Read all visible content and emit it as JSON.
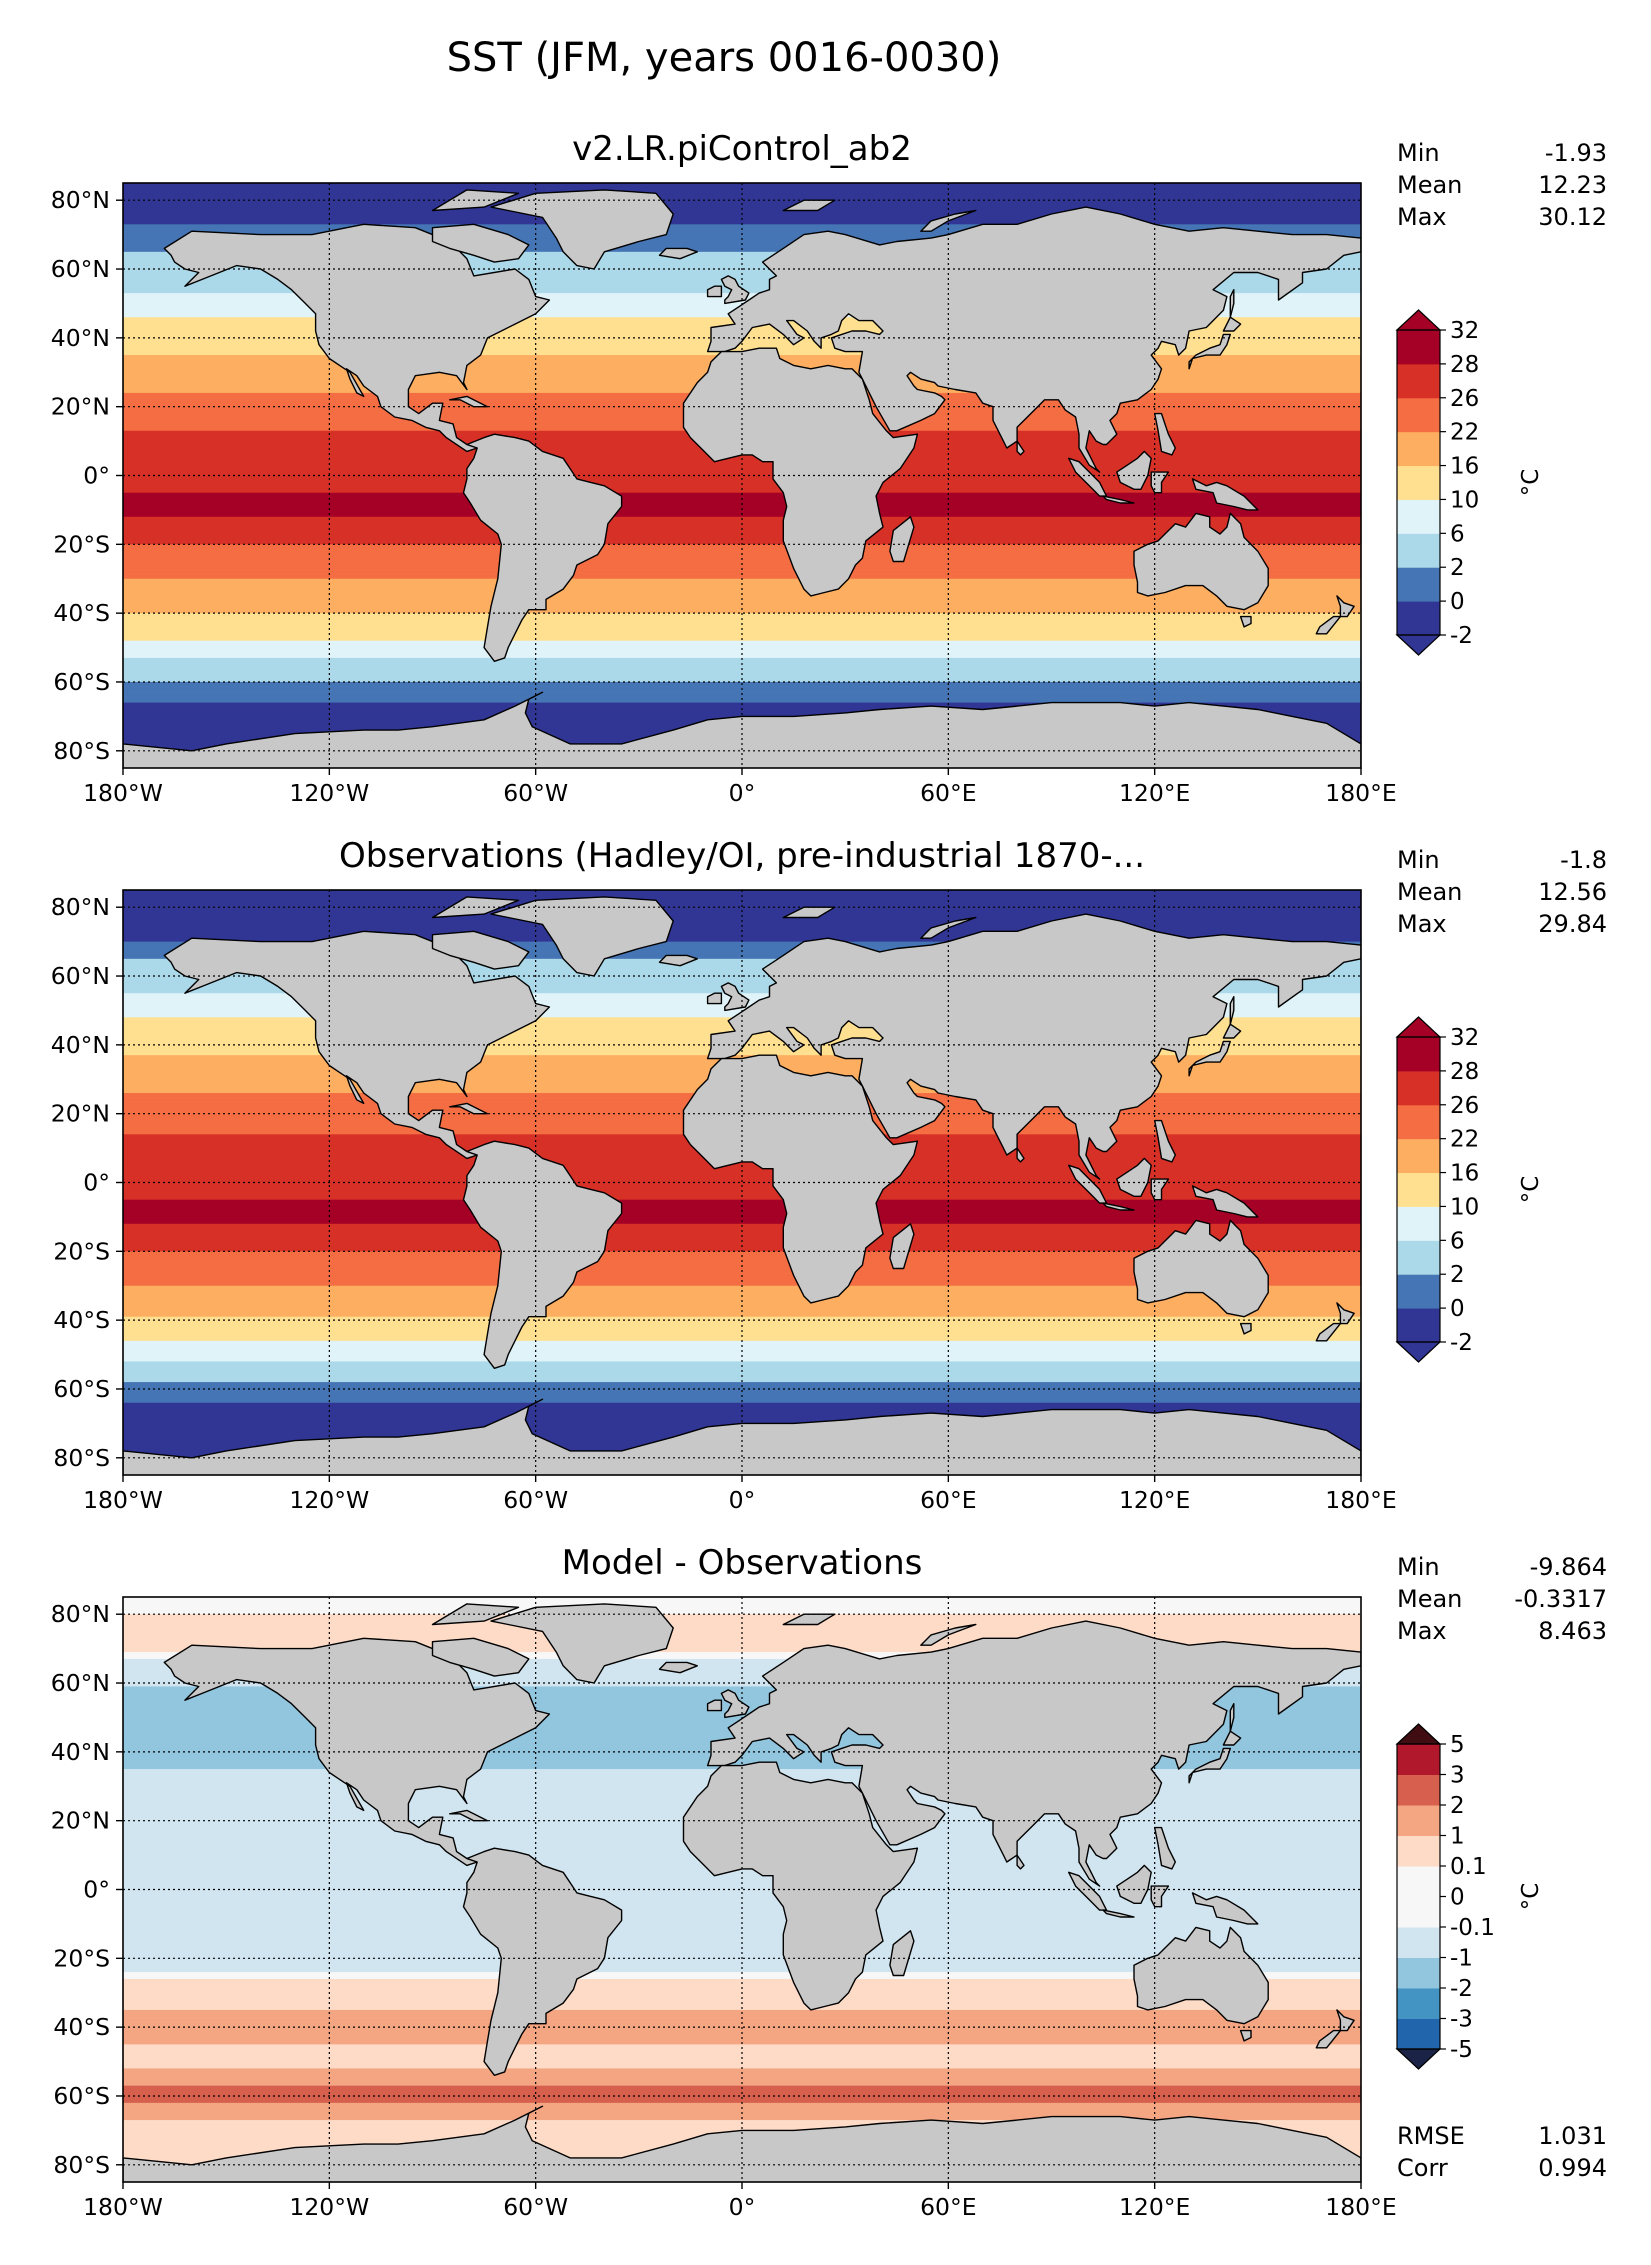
{
  "figure": {
    "title": "SST (JFM, years 0016-0030)"
  },
  "chart_data": [
    {
      "type": "heatmap",
      "title": "v2.LR.piControl_ab2",
      "units": "°C",
      "x_ticks": [
        "180°W",
        "120°W",
        "60°W",
        "0°",
        "60°E",
        "120°E",
        "180°E"
      ],
      "y_ticks": [
        "80°N",
        "60°N",
        "40°N",
        "20°N",
        "0°",
        "20°S",
        "40°S",
        "60°S",
        "80°S"
      ],
      "xlim": [
        -180,
        180
      ],
      "ylim": [
        -85,
        85
      ],
      "stats": [
        {
          "label": "Min",
          "value": "-1.93"
        },
        {
          "label": "Mean",
          "value": "12.23"
        },
        {
          "label": "Max",
          "value": "30.12"
        }
      ],
      "colorbar": {
        "levels": [
          "-2",
          "0",
          "2",
          "6",
          "10",
          "16",
          "22",
          "26",
          "28",
          "32"
        ],
        "colors": [
          "#313695",
          "#4575b4",
          "#abd9e9",
          "#e0f3f8",
          "#fee090",
          "#fdae61",
          "#f46d43",
          "#d73027",
          "#a50026"
        ],
        "extend": "both"
      },
      "zonal_profile": [
        {
          "lat": 85,
          "sst": -1.9
        },
        {
          "lat": 70,
          "sst": 0.5
        },
        {
          "lat": 55,
          "sst": 5
        },
        {
          "lat": 40,
          "sst": 13
        },
        {
          "lat": 30,
          "sst": 19
        },
        {
          "lat": 20,
          "sst": 24
        },
        {
          "lat": 10,
          "sst": 27
        },
        {
          "lat": 0,
          "sst": 27.5
        },
        {
          "lat": -10,
          "sst": 28.5
        },
        {
          "lat": -20,
          "sst": 26
        },
        {
          "lat": -30,
          "sst": 22
        },
        {
          "lat": -40,
          "sst": 16
        },
        {
          "lat": -50,
          "sst": 8
        },
        {
          "lat": -60,
          "sst": 2
        },
        {
          "lat": -70,
          "sst": -1.5
        }
      ]
    },
    {
      "type": "heatmap",
      "title": "Observations (Hadley/OI, pre-industrial 1870-...",
      "units": "°C",
      "x_ticks": [
        "180°W",
        "120°W",
        "60°W",
        "0°",
        "60°E",
        "120°E",
        "180°E"
      ],
      "y_ticks": [
        "80°N",
        "60°N",
        "40°N",
        "20°N",
        "0°",
        "20°S",
        "40°S",
        "60°S",
        "80°S"
      ],
      "xlim": [
        -180,
        180
      ],
      "ylim": [
        -85,
        85
      ],
      "stats": [
        {
          "label": "Min",
          "value": "-1.8"
        },
        {
          "label": "Mean",
          "value": "12.56"
        },
        {
          "label": "Max",
          "value": "29.84"
        }
      ],
      "colorbar": {
        "levels": [
          "-2",
          "0",
          "2",
          "6",
          "10",
          "16",
          "22",
          "26",
          "28",
          "32"
        ],
        "colors": [
          "#313695",
          "#4575b4",
          "#abd9e9",
          "#e0f3f8",
          "#fee090",
          "#fdae61",
          "#f46d43",
          "#d73027",
          "#a50026"
        ],
        "extend": "both"
      },
      "zonal_profile": [
        {
          "lat": 85,
          "sst": -1.8
        },
        {
          "lat": 70,
          "sst": 0
        },
        {
          "lat": 55,
          "sst": 6
        },
        {
          "lat": 40,
          "sst": 14
        },
        {
          "lat": 30,
          "sst": 20
        },
        {
          "lat": 20,
          "sst": 24.5
        },
        {
          "lat": 10,
          "sst": 27
        },
        {
          "lat": 0,
          "sst": 27.5
        },
        {
          "lat": -10,
          "sst": 28.5
        },
        {
          "lat": -20,
          "sst": 26
        },
        {
          "lat": -30,
          "sst": 22
        },
        {
          "lat": -40,
          "sst": 15
        },
        {
          "lat": -50,
          "sst": 7
        },
        {
          "lat": -60,
          "sst": 1
        },
        {
          "lat": -70,
          "sst": -1.5
        }
      ]
    },
    {
      "type": "heatmap",
      "title": "Model - Observations",
      "units": "°C",
      "x_ticks": [
        "180°W",
        "120°W",
        "60°W",
        "0°",
        "60°E",
        "120°E",
        "180°E"
      ],
      "y_ticks": [
        "80°N",
        "60°N",
        "40°N",
        "20°N",
        "0°",
        "20°S",
        "40°S",
        "60°S",
        "80°S"
      ],
      "xlim": [
        -180,
        180
      ],
      "ylim": [
        -85,
        85
      ],
      "stats": [
        {
          "label": "Min",
          "value": "-9.864"
        },
        {
          "label": "Mean",
          "value": "-0.3317"
        },
        {
          "label": "Max",
          "value": "8.463"
        }
      ],
      "extra_stats": [
        {
          "label": "RMSE",
          "value": "1.031"
        },
        {
          "label": "Corr",
          "value": "0.994"
        }
      ],
      "colorbar": {
        "levels": [
          "-5",
          "-3",
          "-2",
          "-1",
          "-0.1",
          "0",
          "0.1",
          "1",
          "2",
          "3",
          "5"
        ],
        "colors": [
          "#2166ac",
          "#4393c3",
          "#92c5de",
          "#d1e5f0",
          "#f7f7f7",
          "#f7f7f7",
          "#fddbc7",
          "#f4a582",
          "#d6604d",
          "#b2182b"
        ],
        "extend_colors": [
          "#1b2447",
          "#3f0d12"
        ],
        "extend": "both"
      },
      "zonal_profile": [
        {
          "lat": 85,
          "diff": 0.05
        },
        {
          "lat": 70,
          "diff": 0.2
        },
        {
          "lat": 55,
          "diff": -1.5
        },
        {
          "lat": 40,
          "diff": -1.5
        },
        {
          "lat": 30,
          "diff": -0.5
        },
        {
          "lat": 20,
          "diff": -0.3
        },
        {
          "lat": 10,
          "diff": -0.3
        },
        {
          "lat": 0,
          "diff": -0.3
        },
        {
          "lat": -10,
          "diff": -0.3
        },
        {
          "lat": -20,
          "diff": -0.5
        },
        {
          "lat": -30,
          "diff": 0.5
        },
        {
          "lat": -40,
          "diff": 1.5
        },
        {
          "lat": -50,
          "diff": 0.5
        },
        {
          "lat": -60,
          "diff": 2.5
        },
        {
          "lat": -70,
          "diff": 0.3
        }
      ]
    }
  ]
}
